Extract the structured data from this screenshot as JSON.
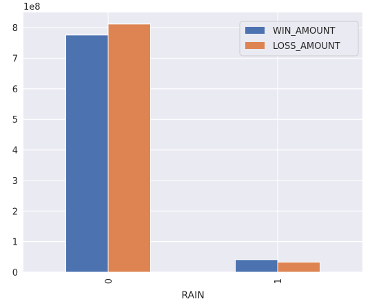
{
  "chart_data": {
    "type": "bar",
    "categories": [
      "0",
      "1"
    ],
    "series": [
      {
        "name": "WIN_AMOUNT",
        "color": "#4c72b0",
        "values": [
          776000000,
          41000000
        ]
      },
      {
        "name": "LOSS_AMOUNT",
        "color": "#dd8452",
        "values": [
          812000000,
          33000000
        ]
      }
    ],
    "xlabel": "RAIN",
    "ylabel": "",
    "y_offset_label": "1e8",
    "y_ticks": [
      0,
      1,
      2,
      3,
      4,
      5,
      6,
      7,
      8
    ],
    "y_tick_scale": 100000000,
    "ylim": [
      0,
      850000000
    ],
    "grid": true,
    "legend_position": "top-right",
    "background": "#eaeaf2"
  }
}
